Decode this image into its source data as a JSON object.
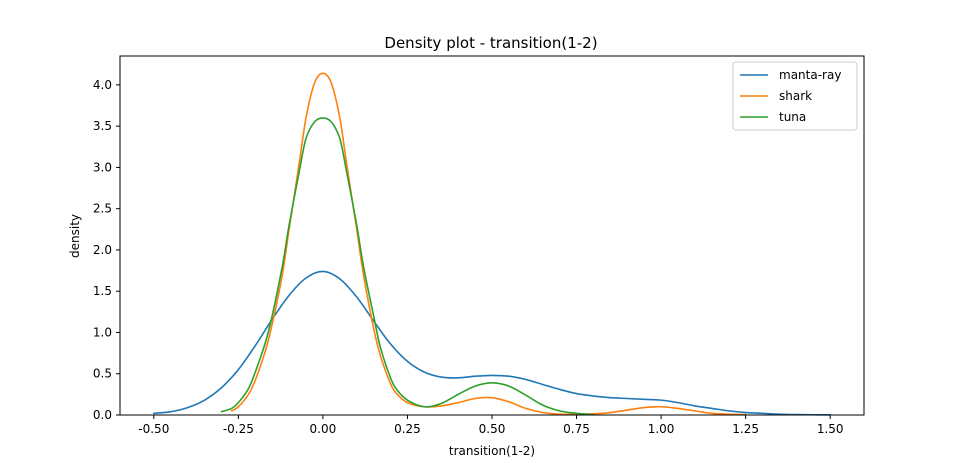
{
  "chart_data": {
    "type": "line",
    "title": "Density plot - transition(1-2)",
    "xlabel": "transition(1-2)",
    "ylabel": "density",
    "xlim": [
      -0.6,
      1.6
    ],
    "ylim": [
      0,
      4.35
    ],
    "xticks": [
      -0.5,
      -0.25,
      0.0,
      0.25,
      0.5,
      0.75,
      1.0,
      1.25,
      1.5
    ],
    "xtick_labels": [
      "-0.50",
      "-0.25",
      "0.00",
      "0.25",
      "0.50",
      "0.75",
      "1.00",
      "1.25",
      "1.50"
    ],
    "yticks": [
      0.0,
      0.5,
      1.0,
      1.5,
      2.0,
      2.5,
      3.0,
      3.5,
      4.0
    ],
    "ytick_labels": [
      "0.0",
      "0.5",
      "1.0",
      "1.5",
      "2.0",
      "2.5",
      "3.0",
      "3.5",
      "4.0"
    ],
    "grid": false,
    "legend_position": "top-right",
    "series": [
      {
        "name": "manta-ray",
        "color": "#1f77b4",
        "x": [
          -0.5,
          -0.45,
          -0.4,
          -0.35,
          -0.3,
          -0.25,
          -0.2,
          -0.15,
          -0.1,
          -0.05,
          0.0,
          0.05,
          0.1,
          0.15,
          0.2,
          0.25,
          0.3,
          0.35,
          0.4,
          0.45,
          0.5,
          0.55,
          0.6,
          0.65,
          0.7,
          0.75,
          0.8,
          0.85,
          0.9,
          0.95,
          1.0,
          1.05,
          1.1,
          1.15,
          1.2,
          1.25,
          1.3,
          1.35,
          1.4,
          1.45,
          1.5
        ],
        "y": [
          0.02,
          0.04,
          0.09,
          0.18,
          0.33,
          0.55,
          0.84,
          1.16,
          1.45,
          1.66,
          1.74,
          1.65,
          1.43,
          1.14,
          0.86,
          0.65,
          0.52,
          0.46,
          0.45,
          0.47,
          0.48,
          0.47,
          0.43,
          0.37,
          0.31,
          0.26,
          0.23,
          0.21,
          0.2,
          0.19,
          0.18,
          0.15,
          0.11,
          0.08,
          0.05,
          0.03,
          0.02,
          0.01,
          0.005,
          0.003,
          0.002
        ]
      },
      {
        "name": "shark",
        "color": "#ff7f0e",
        "x": [
          -0.27,
          -0.25,
          -0.22,
          -0.2,
          -0.17,
          -0.15,
          -0.12,
          -0.1,
          -0.07,
          -0.05,
          -0.025,
          0.0,
          0.025,
          0.05,
          0.07,
          0.1,
          0.12,
          0.15,
          0.17,
          0.2,
          0.22,
          0.25,
          0.3,
          0.35,
          0.4,
          0.45,
          0.5,
          0.55,
          0.6,
          0.65,
          0.7,
          0.75,
          0.8,
          0.85,
          0.9,
          0.95,
          1.0,
          1.05,
          1.1,
          1.15,
          1.2,
          1.25
        ],
        "y": [
          0.05,
          0.1,
          0.25,
          0.42,
          0.78,
          1.1,
          1.7,
          2.25,
          3.05,
          3.6,
          4.02,
          4.14,
          4.02,
          3.6,
          3.05,
          2.25,
          1.7,
          1.05,
          0.72,
          0.38,
          0.25,
          0.15,
          0.1,
          0.11,
          0.15,
          0.2,
          0.21,
          0.16,
          0.08,
          0.03,
          0.01,
          0.01,
          0.015,
          0.03,
          0.06,
          0.09,
          0.1,
          0.08,
          0.05,
          0.02,
          0.01,
          0.005
        ]
      },
      {
        "name": "tuna",
        "color": "#2ca02c",
        "x": [
          -0.3,
          -0.27,
          -0.25,
          -0.22,
          -0.2,
          -0.17,
          -0.15,
          -0.12,
          -0.1,
          -0.07,
          -0.05,
          -0.025,
          0.0,
          0.025,
          0.05,
          0.07,
          0.1,
          0.12,
          0.15,
          0.17,
          0.2,
          0.22,
          0.25,
          0.3,
          0.35,
          0.4,
          0.45,
          0.5,
          0.55,
          0.6,
          0.65,
          0.7,
          0.75,
          0.8
        ],
        "y": [
          0.04,
          0.08,
          0.15,
          0.32,
          0.52,
          0.88,
          1.2,
          1.8,
          2.3,
          2.95,
          3.35,
          3.55,
          3.6,
          3.55,
          3.35,
          2.95,
          2.3,
          1.8,
          1.2,
          0.82,
          0.45,
          0.3,
          0.18,
          0.1,
          0.14,
          0.25,
          0.35,
          0.39,
          0.35,
          0.24,
          0.12,
          0.05,
          0.02,
          0.005
        ]
      }
    ]
  }
}
